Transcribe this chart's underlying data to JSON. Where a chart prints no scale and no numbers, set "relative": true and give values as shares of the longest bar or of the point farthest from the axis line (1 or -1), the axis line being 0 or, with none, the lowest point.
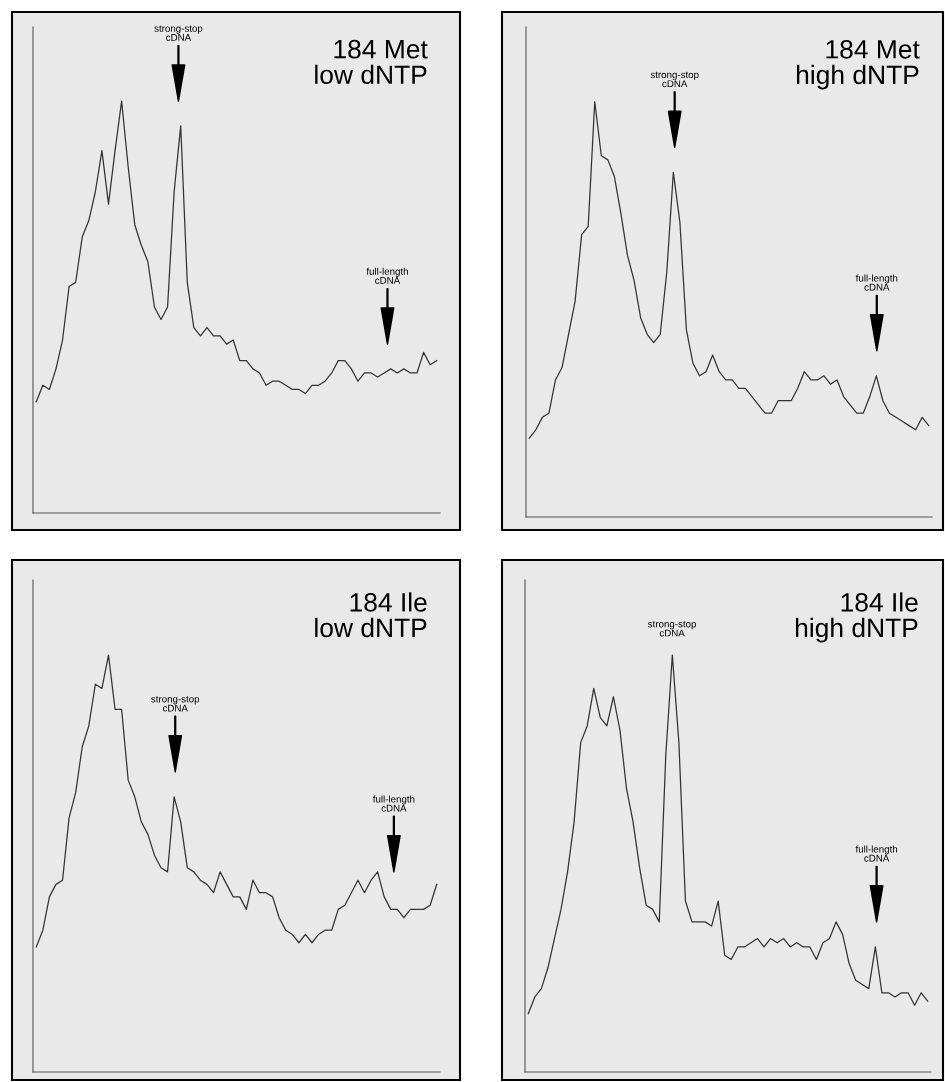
{
  "chart_data": [
    {
      "type": "line",
      "title": "184 Met\nlow dNTP",
      "relative": true,
      "categories": [
        null,
        null,
        null,
        null,
        null,
        null,
        null,
        null,
        null,
        null,
        null,
        null,
        null,
        null,
        null,
        null,
        null,
        null,
        null,
        null,
        null,
        null,
        null,
        null,
        null,
        null,
        null,
        null,
        null,
        null,
        null,
        null,
        null,
        null,
        null,
        null,
        null,
        null,
        null,
        null,
        null,
        null,
        null,
        null,
        null,
        null,
        null,
        null,
        null,
        null,
        null,
        null,
        null,
        null,
        null,
        null,
        null,
        null,
        null,
        null,
        null,
        null
      ],
      "series": [
        {
          "color": "#333333",
          "values": [
            0.27,
            0.31,
            0.3,
            0.35,
            0.42,
            0.55,
            0.56,
            0.67,
            0.71,
            0.78,
            0.88,
            0.75,
            0.88,
            1.0,
            0.84,
            0.7,
            0.65,
            0.61,
            0.5,
            0.47,
            0.5,
            0.78,
            0.94,
            0.56,
            0.45,
            0.43,
            0.45,
            0.43,
            0.43,
            0.41,
            0.42,
            0.37,
            0.37,
            0.35,
            0.34,
            0.31,
            0.32,
            0.32,
            0.31,
            0.3,
            0.3,
            0.29,
            0.31,
            0.31,
            0.32,
            0.34,
            0.37,
            0.37,
            0.35,
            0.32,
            0.34,
            0.34,
            0.33,
            0.34,
            0.35,
            0.34,
            0.35,
            0.34,
            0.34,
            0.39,
            0.36,
            0.37
          ]
        }
      ],
      "annotations": [
        "strong-stop\ncDNA",
        "full-length\ncDNA"
      ]
    },
    {
      "type": "line",
      "title": "184 Met\nhigh dNTP",
      "relative": true,
      "categories": [
        null,
        null,
        null,
        null,
        null,
        null,
        null,
        null,
        null,
        null,
        null,
        null,
        null,
        null,
        null,
        null,
        null,
        null,
        null,
        null,
        null,
        null,
        null,
        null,
        null,
        null,
        null,
        null,
        null,
        null,
        null,
        null,
        null,
        null,
        null,
        null,
        null,
        null,
        null,
        null,
        null,
        null,
        null,
        null,
        null,
        null,
        null,
        null,
        null,
        null,
        null,
        null,
        null,
        null,
        null,
        null,
        null,
        null,
        null,
        null,
        null,
        null
      ],
      "series": [
        {
          "color": "#333333",
          "values": [
            0.19,
            0.21,
            0.24,
            0.25,
            0.33,
            0.36,
            0.44,
            0.52,
            0.68,
            0.7,
            1.0,
            0.87,
            0.86,
            0.82,
            0.73,
            0.63,
            0.57,
            0.48,
            0.44,
            0.42,
            0.44,
            0.59,
            0.83,
            0.71,
            0.45,
            0.37,
            0.34,
            0.35,
            0.39,
            0.35,
            0.33,
            0.33,
            0.31,
            0.31,
            0.29,
            0.27,
            0.25,
            0.25,
            0.28,
            0.28,
            0.28,
            0.31,
            0.35,
            0.33,
            0.33,
            0.34,
            0.32,
            0.33,
            0.29,
            0.27,
            0.25,
            0.25,
            0.29,
            0.34,
            0.28,
            0.25,
            0.24,
            0.23,
            0.22,
            0.21,
            0.24,
            0.22
          ]
        }
      ],
      "annotations": [
        "strong-stop\ncDNA",
        "full-length\ncDNA"
      ]
    },
    {
      "type": "line",
      "title": "184 Ile\nlow dNTP",
      "relative": true,
      "categories": [
        null,
        null,
        null,
        null,
        null,
        null,
        null,
        null,
        null,
        null,
        null,
        null,
        null,
        null,
        null,
        null,
        null,
        null,
        null,
        null,
        null,
        null,
        null,
        null,
        null,
        null,
        null,
        null,
        null,
        null,
        null,
        null,
        null,
        null,
        null,
        null,
        null,
        null,
        null,
        null,
        null,
        null,
        null,
        null,
        null,
        null,
        null,
        null,
        null,
        null,
        null,
        null,
        null,
        null,
        null,
        null,
        null,
        null,
        null,
        null,
        null,
        null
      ],
      "series": [
        {
          "color": "#333333",
          "values": [
            0.3,
            0.34,
            0.42,
            0.45,
            0.46,
            0.61,
            0.67,
            0.78,
            0.83,
            0.93,
            0.92,
            1.0,
            0.87,
            0.87,
            0.7,
            0.66,
            0.6,
            0.57,
            0.52,
            0.49,
            0.48,
            0.66,
            0.6,
            0.49,
            0.48,
            0.46,
            0.45,
            0.43,
            0.48,
            0.45,
            0.42,
            0.42,
            0.39,
            0.46,
            0.43,
            0.43,
            0.42,
            0.37,
            0.34,
            0.33,
            0.31,
            0.33,
            0.31,
            0.33,
            0.34,
            0.34,
            0.39,
            0.4,
            0.43,
            0.46,
            0.43,
            0.46,
            0.48,
            0.42,
            0.39,
            0.39,
            0.37,
            0.39,
            0.39,
            0.39,
            0.4,
            0.45
          ]
        }
      ],
      "annotations": [
        "strong-stop\ncDNA",
        "full-length\ncDNA"
      ]
    },
    {
      "type": "line",
      "title": "184 Ile\nhigh dNTP",
      "relative": true,
      "categories": [
        null,
        null,
        null,
        null,
        null,
        null,
        null,
        null,
        null,
        null,
        null,
        null,
        null,
        null,
        null,
        null,
        null,
        null,
        null,
        null,
        null,
        null,
        null,
        null,
        null,
        null,
        null,
        null,
        null,
        null,
        null,
        null,
        null,
        null,
        null,
        null,
        null,
        null,
        null,
        null,
        null,
        null,
        null,
        null,
        null,
        null,
        null,
        null,
        null,
        null,
        null,
        null,
        null,
        null,
        null,
        null,
        null,
        null,
        null,
        null,
        null,
        null
      ],
      "series": [
        {
          "color": "#333333",
          "values": [
            0.14,
            0.18,
            0.2,
            0.25,
            0.32,
            0.39,
            0.48,
            0.6,
            0.79,
            0.83,
            0.92,
            0.85,
            0.83,
            0.9,
            0.82,
            0.68,
            0.6,
            0.49,
            0.4,
            0.39,
            0.36,
            0.76,
            1.0,
            0.79,
            0.41,
            0.36,
            0.36,
            0.36,
            0.35,
            0.41,
            0.28,
            0.27,
            0.3,
            0.3,
            0.31,
            0.32,
            0.3,
            0.32,
            0.31,
            0.32,
            0.3,
            0.31,
            0.3,
            0.3,
            0.27,
            0.31,
            0.32,
            0.36,
            0.33,
            0.26,
            0.22,
            0.21,
            0.2,
            0.3,
            0.19,
            0.19,
            0.18,
            0.19,
            0.19,
            0.16,
            0.19,
            0.17
          ]
        }
      ],
      "annotations": [
        "strong-stop\ncDNA",
        "full-length\ncDNA"
      ]
    }
  ]
}
